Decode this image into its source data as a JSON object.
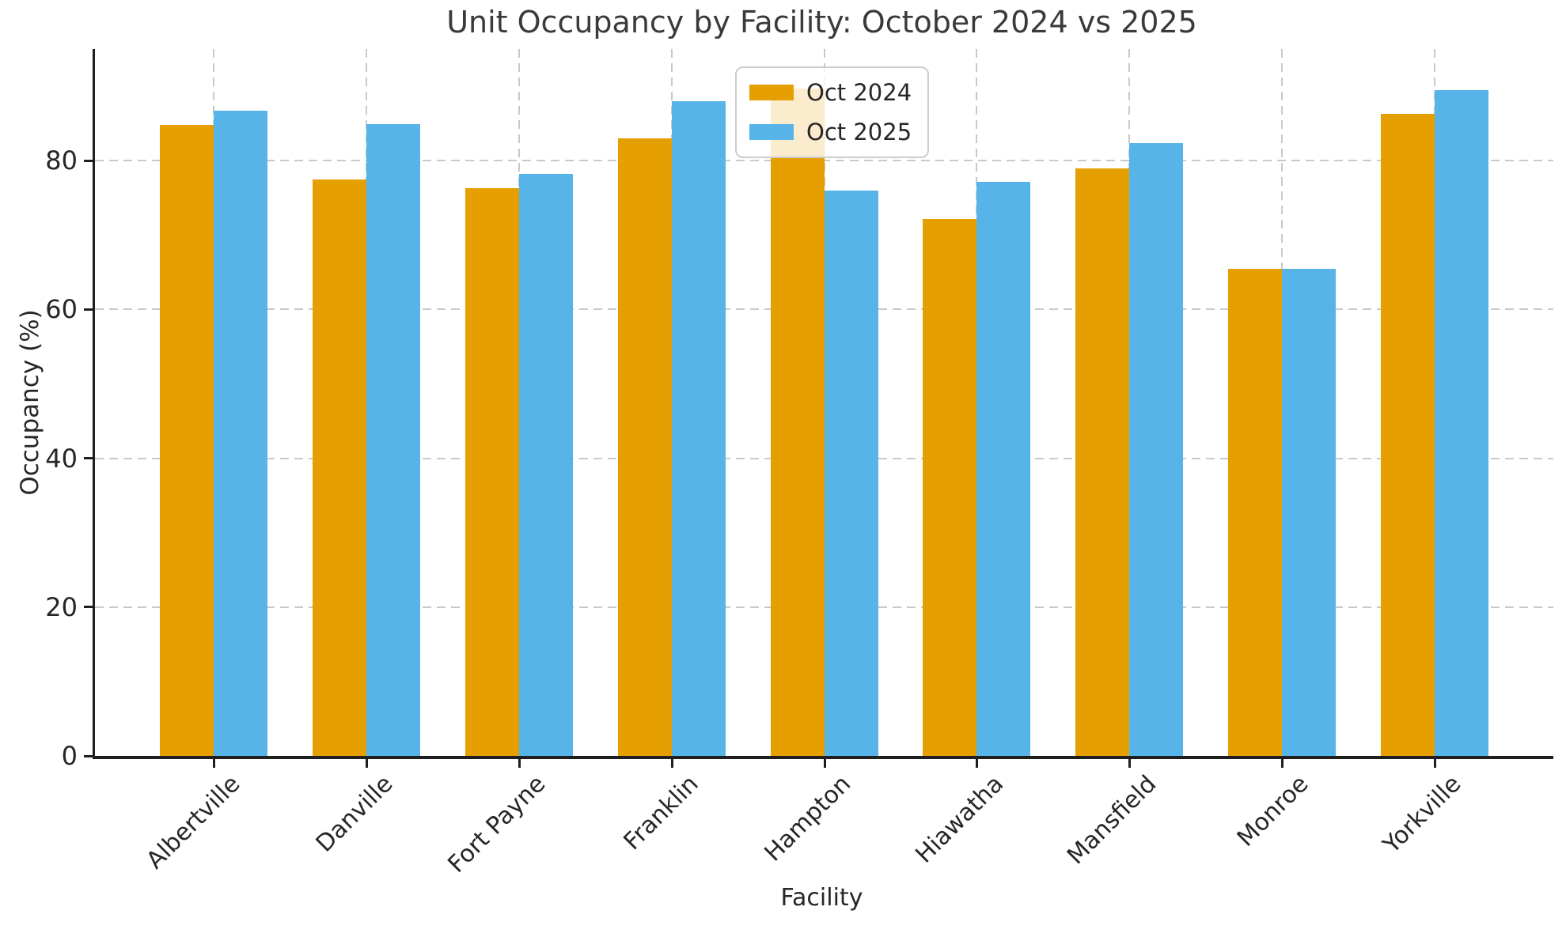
{
  "chart_data": {
    "type": "bar",
    "title": "Unit Occupancy by Facility: October 2024 vs 2025",
    "xlabel": "Facility",
    "ylabel": "Occupancy (%)",
    "categories": [
      "Albertville",
      "Danville",
      "Fort Payne",
      "Franklin",
      "Hampton",
      "Hiawatha",
      "Mansfield",
      "Monroe",
      "Yorkville"
    ],
    "series": [
      {
        "name": "Oct 2024",
        "color": "#E69F00",
        "values": [
          84.8,
          77.5,
          76.3,
          83.0,
          89.7,
          72.2,
          79.0,
          65.5,
          86.3
        ]
      },
      {
        "name": "Oct 2025",
        "color": "#56B4E9",
        "values": [
          86.7,
          84.9,
          78.2,
          88.0,
          76.0,
          77.1,
          82.4,
          65.5,
          89.5
        ]
      }
    ],
    "ylim": [
      0,
      95
    ],
    "yticks": [
      0,
      20,
      40,
      60,
      80
    ],
    "grid": "dashed, both axes, behind bars",
    "grid_color": "#c9c9c9",
    "axis_color": "#1f1f1f",
    "legend_position": "upper center",
    "x_tick_rotation": 45
  }
}
